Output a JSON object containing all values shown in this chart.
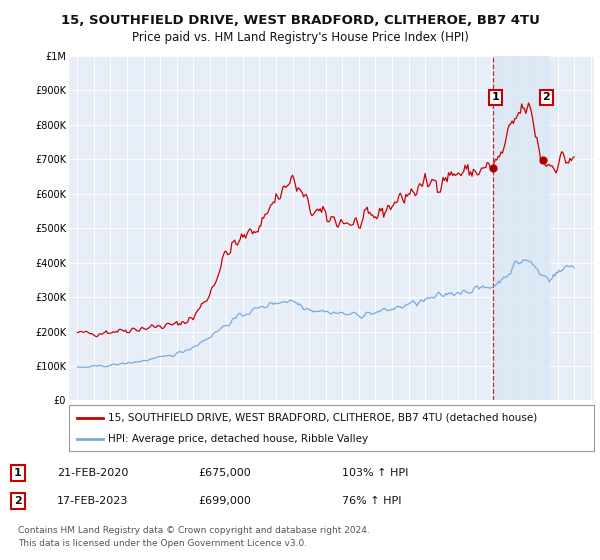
{
  "title": "15, SOUTHFIELD DRIVE, WEST BRADFORD, CLITHEROE, BB7 4TU",
  "subtitle": "Price paid vs. HM Land Registry's House Price Index (HPI)",
  "ylim": [
    0,
    1000000
  ],
  "yticks": [
    0,
    100000,
    200000,
    300000,
    400000,
    500000,
    600000,
    700000,
    800000,
    900000,
    1000000
  ],
  "ytick_labels": [
    "£0",
    "£100K",
    "£200K",
    "£300K",
    "£400K",
    "£500K",
    "£600K",
    "£700K",
    "£800K",
    "£900K",
    "£1M"
  ],
  "background_color": "#ffffff",
  "plot_bg_color": "#e8eef8",
  "grid_color": "#ffffff",
  "red_line_color": "#cc0000",
  "blue_line_color": "#7aaadd",
  "legend_entry1": "15, SOUTHFIELD DRIVE, WEST BRADFORD, CLITHEROE, BB7 4TU (detached house)",
  "legend_entry2": "HPI: Average price, detached house, Ribble Valley",
  "annotation1_label": "1",
  "annotation1_date": "21-FEB-2020",
  "annotation1_price": "£675,000",
  "annotation1_pct": "103% ↑ HPI",
  "annotation2_label": "2",
  "annotation2_date": "17-FEB-2023",
  "annotation2_price": "£699,000",
  "annotation2_pct": "76% ↑ HPI",
  "footer": "Contains HM Land Registry data © Crown copyright and database right 2024.\nThis data is licensed under the Open Government Licence v3.0.",
  "marker1_x": 2020.12,
  "marker1_y": 675000,
  "marker2_x": 2023.12,
  "marker2_y": 699000,
  "shade_x1": 2020.12,
  "shade_x2": 2023.5,
  "dashed_line_x": 2020.12,
  "xlim_min": 1994.5,
  "xlim_max": 2026.2,
  "xticks": [
    1995,
    1996,
    1997,
    1998,
    1999,
    2000,
    2001,
    2002,
    2003,
    2004,
    2005,
    2006,
    2007,
    2008,
    2009,
    2010,
    2011,
    2012,
    2013,
    2014,
    2015,
    2016,
    2017,
    2018,
    2019,
    2020,
    2021,
    2022,
    2023,
    2024,
    2025,
    2026
  ],
  "title_fontsize": 9.5,
  "subtitle_fontsize": 8.5,
  "tick_fontsize": 7,
  "legend_fontsize": 7.5,
  "footer_fontsize": 6.5
}
